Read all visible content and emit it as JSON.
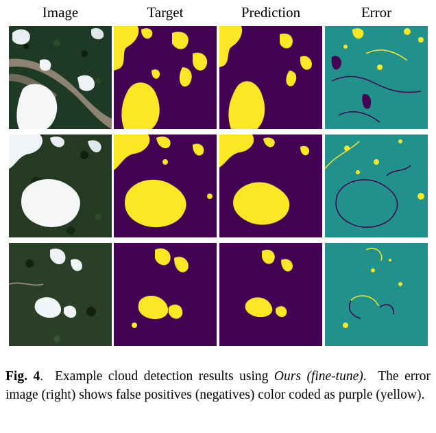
{
  "columns": [
    "Image",
    "Target",
    "Prediction",
    "Error"
  ],
  "colors": {
    "mask_background": "#440154",
    "mask_cloud": "#fde725",
    "error_background": "#21918c",
    "error_false_positive": "#440154",
    "error_false_negative": "#fde725"
  },
  "rows": [
    {
      "id": "row-1",
      "image": "satellite-image-1",
      "target": "target-mask-1",
      "prediction": "prediction-mask-1",
      "error": "error-map-1"
    },
    {
      "id": "row-2",
      "image": "satellite-image-2",
      "target": "target-mask-2",
      "prediction": "prediction-mask-2",
      "error": "error-map-2"
    },
    {
      "id": "row-3",
      "image": "satellite-image-3",
      "target": "target-mask-3",
      "prediction": "prediction-mask-3",
      "error": "error-map-3"
    }
  ],
  "caption": {
    "label": "Fig. 4",
    "sep": ".",
    "text1": "  Example cloud detection results using ",
    "method": "Ours (fine-tune)",
    "text2": ".  The error image (right) shows false positives (negatives) color coded as purple (yellow)."
  }
}
